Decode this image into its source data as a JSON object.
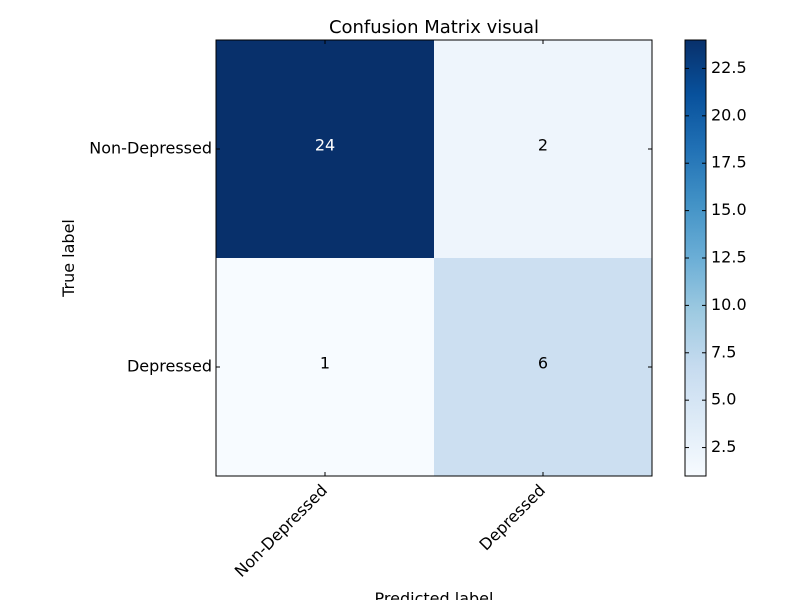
{
  "chart_data": {
    "type": "heatmap",
    "title": "Confusion Matrix visual",
    "xlabel": "Predicted label",
    "ylabel": "True label",
    "x_categories": [
      "Non-Depressed",
      "Depressed"
    ],
    "y_categories": [
      "Non-Depressed",
      "Depressed"
    ],
    "values": [
      [
        24,
        2
      ],
      [
        1,
        6
      ]
    ],
    "colormap": "Blues",
    "colorbar": {
      "min": 1,
      "max": 24,
      "ticks": [
        2.5,
        5.0,
        7.5,
        10.0,
        12.5,
        15.0,
        17.5,
        20.0,
        22.5
      ],
      "tick_labels": [
        "2.5",
        "5.0",
        "7.5",
        "10.0",
        "12.5",
        "15.0",
        "17.5",
        "20.0",
        "22.5"
      ]
    },
    "grid": false
  }
}
